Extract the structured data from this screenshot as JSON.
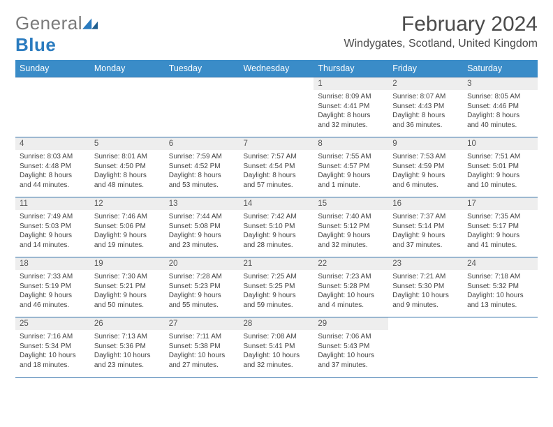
{
  "logo": {
    "word1": "General",
    "word2": "Blue"
  },
  "title": "February 2024",
  "location": "Windygates, Scotland, United Kingdom",
  "colors": {
    "header_bg": "#3a8cc8",
    "border": "#2f6fa8",
    "daynum_bg": "#eeeeee",
    "text": "#444444"
  },
  "weekdays": [
    "Sunday",
    "Monday",
    "Tuesday",
    "Wednesday",
    "Thursday",
    "Friday",
    "Saturday"
  ],
  "weeks": [
    [
      null,
      null,
      null,
      null,
      {
        "n": "1",
        "sr": "Sunrise: 8:09 AM",
        "ss": "Sunset: 4:41 PM",
        "dl1": "Daylight: 8 hours",
        "dl2": "and 32 minutes."
      },
      {
        "n": "2",
        "sr": "Sunrise: 8:07 AM",
        "ss": "Sunset: 4:43 PM",
        "dl1": "Daylight: 8 hours",
        "dl2": "and 36 minutes."
      },
      {
        "n": "3",
        "sr": "Sunrise: 8:05 AM",
        "ss": "Sunset: 4:46 PM",
        "dl1": "Daylight: 8 hours",
        "dl2": "and 40 minutes."
      }
    ],
    [
      {
        "n": "4",
        "sr": "Sunrise: 8:03 AM",
        "ss": "Sunset: 4:48 PM",
        "dl1": "Daylight: 8 hours",
        "dl2": "and 44 minutes."
      },
      {
        "n": "5",
        "sr": "Sunrise: 8:01 AM",
        "ss": "Sunset: 4:50 PM",
        "dl1": "Daylight: 8 hours",
        "dl2": "and 48 minutes."
      },
      {
        "n": "6",
        "sr": "Sunrise: 7:59 AM",
        "ss": "Sunset: 4:52 PM",
        "dl1": "Daylight: 8 hours",
        "dl2": "and 53 minutes."
      },
      {
        "n": "7",
        "sr": "Sunrise: 7:57 AM",
        "ss": "Sunset: 4:54 PM",
        "dl1": "Daylight: 8 hours",
        "dl2": "and 57 minutes."
      },
      {
        "n": "8",
        "sr": "Sunrise: 7:55 AM",
        "ss": "Sunset: 4:57 PM",
        "dl1": "Daylight: 9 hours",
        "dl2": "and 1 minute."
      },
      {
        "n": "9",
        "sr": "Sunrise: 7:53 AM",
        "ss": "Sunset: 4:59 PM",
        "dl1": "Daylight: 9 hours",
        "dl2": "and 6 minutes."
      },
      {
        "n": "10",
        "sr": "Sunrise: 7:51 AM",
        "ss": "Sunset: 5:01 PM",
        "dl1": "Daylight: 9 hours",
        "dl2": "and 10 minutes."
      }
    ],
    [
      {
        "n": "11",
        "sr": "Sunrise: 7:49 AM",
        "ss": "Sunset: 5:03 PM",
        "dl1": "Daylight: 9 hours",
        "dl2": "and 14 minutes."
      },
      {
        "n": "12",
        "sr": "Sunrise: 7:46 AM",
        "ss": "Sunset: 5:06 PM",
        "dl1": "Daylight: 9 hours",
        "dl2": "and 19 minutes."
      },
      {
        "n": "13",
        "sr": "Sunrise: 7:44 AM",
        "ss": "Sunset: 5:08 PM",
        "dl1": "Daylight: 9 hours",
        "dl2": "and 23 minutes."
      },
      {
        "n": "14",
        "sr": "Sunrise: 7:42 AM",
        "ss": "Sunset: 5:10 PM",
        "dl1": "Daylight: 9 hours",
        "dl2": "and 28 minutes."
      },
      {
        "n": "15",
        "sr": "Sunrise: 7:40 AM",
        "ss": "Sunset: 5:12 PM",
        "dl1": "Daylight: 9 hours",
        "dl2": "and 32 minutes."
      },
      {
        "n": "16",
        "sr": "Sunrise: 7:37 AM",
        "ss": "Sunset: 5:14 PM",
        "dl1": "Daylight: 9 hours",
        "dl2": "and 37 minutes."
      },
      {
        "n": "17",
        "sr": "Sunrise: 7:35 AM",
        "ss": "Sunset: 5:17 PM",
        "dl1": "Daylight: 9 hours",
        "dl2": "and 41 minutes."
      }
    ],
    [
      {
        "n": "18",
        "sr": "Sunrise: 7:33 AM",
        "ss": "Sunset: 5:19 PM",
        "dl1": "Daylight: 9 hours",
        "dl2": "and 46 minutes."
      },
      {
        "n": "19",
        "sr": "Sunrise: 7:30 AM",
        "ss": "Sunset: 5:21 PM",
        "dl1": "Daylight: 9 hours",
        "dl2": "and 50 minutes."
      },
      {
        "n": "20",
        "sr": "Sunrise: 7:28 AM",
        "ss": "Sunset: 5:23 PM",
        "dl1": "Daylight: 9 hours",
        "dl2": "and 55 minutes."
      },
      {
        "n": "21",
        "sr": "Sunrise: 7:25 AM",
        "ss": "Sunset: 5:25 PM",
        "dl1": "Daylight: 9 hours",
        "dl2": "and 59 minutes."
      },
      {
        "n": "22",
        "sr": "Sunrise: 7:23 AM",
        "ss": "Sunset: 5:28 PM",
        "dl1": "Daylight: 10 hours",
        "dl2": "and 4 minutes."
      },
      {
        "n": "23",
        "sr": "Sunrise: 7:21 AM",
        "ss": "Sunset: 5:30 PM",
        "dl1": "Daylight: 10 hours",
        "dl2": "and 9 minutes."
      },
      {
        "n": "24",
        "sr": "Sunrise: 7:18 AM",
        "ss": "Sunset: 5:32 PM",
        "dl1": "Daylight: 10 hours",
        "dl2": "and 13 minutes."
      }
    ],
    [
      {
        "n": "25",
        "sr": "Sunrise: 7:16 AM",
        "ss": "Sunset: 5:34 PM",
        "dl1": "Daylight: 10 hours",
        "dl2": "and 18 minutes."
      },
      {
        "n": "26",
        "sr": "Sunrise: 7:13 AM",
        "ss": "Sunset: 5:36 PM",
        "dl1": "Daylight: 10 hours",
        "dl2": "and 23 minutes."
      },
      {
        "n": "27",
        "sr": "Sunrise: 7:11 AM",
        "ss": "Sunset: 5:38 PM",
        "dl1": "Daylight: 10 hours",
        "dl2": "and 27 minutes."
      },
      {
        "n": "28",
        "sr": "Sunrise: 7:08 AM",
        "ss": "Sunset: 5:41 PM",
        "dl1": "Daylight: 10 hours",
        "dl2": "and 32 minutes."
      },
      {
        "n": "29",
        "sr": "Sunrise: 7:06 AM",
        "ss": "Sunset: 5:43 PM",
        "dl1": "Daylight: 10 hours",
        "dl2": "and 37 minutes."
      },
      null,
      null
    ]
  ]
}
